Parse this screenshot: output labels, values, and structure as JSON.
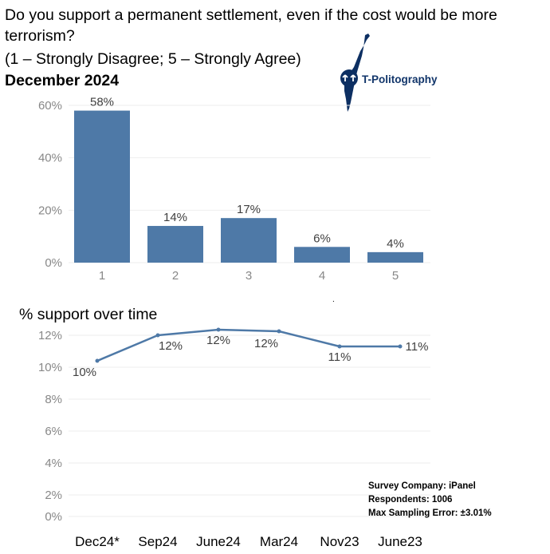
{
  "title": {
    "line1": "Do you support a permanent settlement, even if the cost would be more",
    "line2": "terrorism?",
    "line3": "(1 – Strongly Disagree; 5 – Strongly Agree)",
    "line4": "December 2024"
  },
  "logo": {
    "text": "T-Politography",
    "icon": "israel-map-icon",
    "color": "#0d2f62"
  },
  "line_section_title": "% support over time",
  "survey": {
    "company": "Survey Company: iPanel",
    "respondents": "Respondents: 1006",
    "error": "Max Sampling Error: ±3.01%"
  },
  "colors": {
    "bar": "#4e79a7",
    "line": "#4e79a7",
    "axis_text": "#888888",
    "grid": "#eeeeee"
  },
  "chart_data": [
    {
      "type": "bar",
      "categories": [
        "1",
        "2",
        "3",
        "4",
        "5"
      ],
      "values": [
        58,
        14,
        17,
        6,
        4
      ],
      "data_labels": [
        "58%",
        "14%",
        "17%",
        "6%",
        "4%"
      ],
      "ylim": [
        0,
        60
      ],
      "yticks": [
        {
          "value": 0,
          "label": "0%"
        },
        {
          "value": 20,
          "label": "20%"
        },
        {
          "value": 40,
          "label": "40%"
        },
        {
          "value": 60,
          "label": "60%"
        }
      ],
      "grid": true
    },
    {
      "type": "line",
      "title": "% support over time",
      "categories": [
        "Dec24*",
        "Sep24",
        "June24",
        "Mar24",
        "Nov23",
        "June23"
      ],
      "values": [
        10.4,
        12,
        12.35,
        12.25,
        11.3,
        11.3
      ],
      "data_labels": [
        "10%",
        "12%",
        "12%",
        "12%",
        "11%",
        "11%"
      ],
      "ylim": [
        0,
        12
      ],
      "yticks": [
        {
          "value": 0,
          "label": "0%"
        },
        {
          "value": 2,
          "label": "2%"
        },
        {
          "value": 4,
          "label": "4%"
        },
        {
          "value": 6,
          "label": "6%"
        },
        {
          "value": 8,
          "label": "8%"
        },
        {
          "value": 10,
          "label": "10%"
        },
        {
          "value": 12,
          "label": "12%"
        }
      ],
      "grid": true
    }
  ]
}
